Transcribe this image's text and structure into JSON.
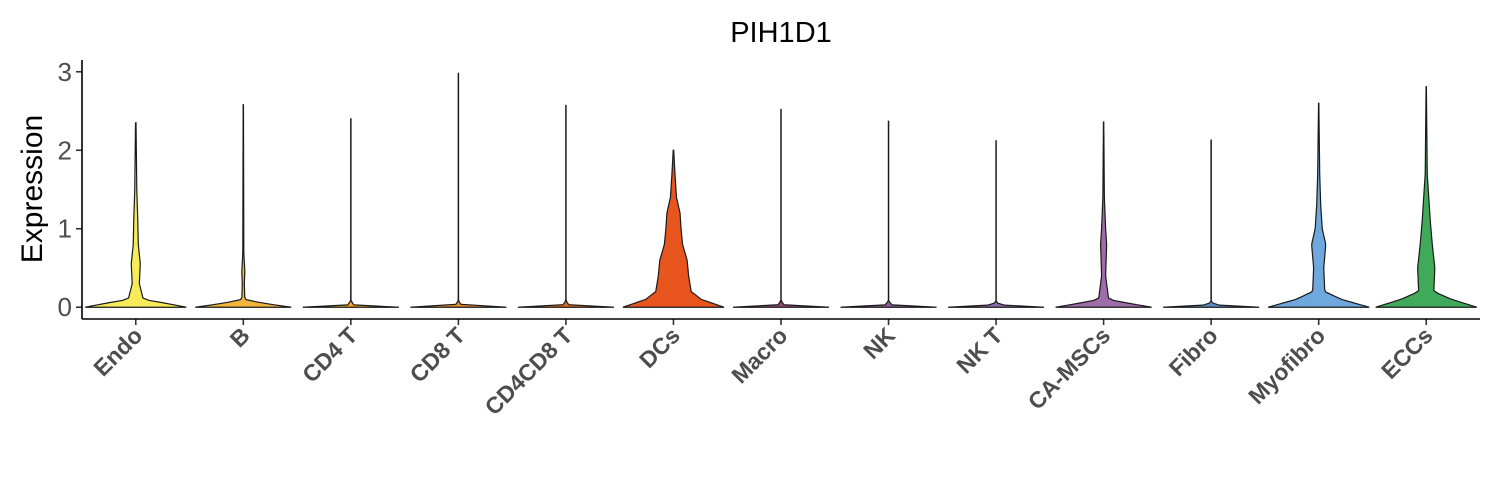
{
  "chart_data": {
    "type": "violin",
    "title": "PIH1D1",
    "xlabel": "",
    "ylabel": "Expression",
    "ylim": [
      -0.15,
      3.15
    ],
    "yticks": [
      0,
      1,
      2,
      3
    ],
    "grid": false,
    "legend": "none",
    "categories": [
      "Endo",
      "B",
      "CD4 T",
      "CD8 T",
      "CD4CD8 T",
      "DCs",
      "Macro",
      "NK",
      "NK T",
      "CA-MSCs",
      "Fibro",
      "Myofibro",
      "ECCs"
    ],
    "colors": [
      "#F8EB5A",
      "#F0B43C",
      "#F5A623",
      "#E58A2A",
      "#E06A1F",
      "#E8561E",
      "#9D4A7A",
      "#8E5B95",
      "#8A6AAA",
      "#9E6CA8",
      "#5E8EC8",
      "#6FA8DC",
      "#3FAA5A"
    ],
    "max_values": [
      2.35,
      2.58,
      2.4,
      2.98,
      2.57,
      2.0,
      2.52,
      2.37,
      2.12,
      2.36,
      2.13,
      2.6,
      2.81
    ],
    "density_profiles": [
      [
        [
          0,
          1.0
        ],
        [
          0.05,
          0.6
        ],
        [
          0.1,
          0.15
        ],
        [
          0.3,
          0.07
        ],
        [
          0.55,
          0.09
        ],
        [
          0.8,
          0.05
        ],
        [
          1.1,
          0.04
        ],
        [
          1.5,
          0.02
        ],
        [
          2.35,
          0.005
        ]
      ],
      [
        [
          0,
          0.95
        ],
        [
          0.05,
          0.4
        ],
        [
          0.1,
          0.03
        ],
        [
          0.3,
          0.02
        ],
        [
          0.45,
          0.03
        ],
        [
          0.7,
          0.01
        ],
        [
          2.58,
          0.003
        ]
      ],
      [
        [
          0,
          0.95
        ],
        [
          0.03,
          0.06
        ],
        [
          0.08,
          0.003
        ],
        [
          2.4,
          0.003
        ]
      ],
      [
        [
          0,
          0.95
        ],
        [
          0.03,
          0.06
        ],
        [
          0.08,
          0.003
        ],
        [
          2.98,
          0.003
        ]
      ],
      [
        [
          0,
          0.95
        ],
        [
          0.03,
          0.06
        ],
        [
          0.08,
          0.003
        ],
        [
          2.57,
          0.003
        ]
      ],
      [
        [
          0,
          1.0
        ],
        [
          0.1,
          0.55
        ],
        [
          0.2,
          0.35
        ],
        [
          0.4,
          0.3
        ],
        [
          0.6,
          0.27
        ],
        [
          0.8,
          0.18
        ],
        [
          1.0,
          0.15
        ],
        [
          1.2,
          0.13
        ],
        [
          1.4,
          0.06
        ],
        [
          1.7,
          0.03
        ],
        [
          2.0,
          0.005
        ]
      ],
      [
        [
          0,
          0.95
        ],
        [
          0.03,
          0.06
        ],
        [
          0.08,
          0.003
        ],
        [
          2.52,
          0.003
        ]
      ],
      [
        [
          0,
          0.95
        ],
        [
          0.03,
          0.06
        ],
        [
          0.08,
          0.003
        ],
        [
          2.37,
          0.003
        ]
      ],
      [
        [
          0,
          0.95
        ],
        [
          0.03,
          0.06
        ],
        [
          0.08,
          0.003
        ],
        [
          2.12,
          0.003
        ]
      ],
      [
        [
          0,
          0.95
        ],
        [
          0.05,
          0.5
        ],
        [
          0.1,
          0.1
        ],
        [
          0.4,
          0.04
        ],
        [
          0.8,
          0.06
        ],
        [
          1.0,
          0.04
        ],
        [
          1.4,
          0.015
        ],
        [
          2.36,
          0.003
        ]
      ],
      [
        [
          0,
          0.95
        ],
        [
          0.03,
          0.06
        ],
        [
          0.08,
          0.003
        ],
        [
          2.13,
          0.003
        ]
      ],
      [
        [
          0,
          1.0
        ],
        [
          0.1,
          0.45
        ],
        [
          0.2,
          0.12
        ],
        [
          0.5,
          0.1
        ],
        [
          0.8,
          0.14
        ],
        [
          1.0,
          0.07
        ],
        [
          1.3,
          0.04
        ],
        [
          1.7,
          0.02
        ],
        [
          2.6,
          0.003
        ]
      ],
      [
        [
          0,
          1.0
        ],
        [
          0.1,
          0.5
        ],
        [
          0.2,
          0.15
        ],
        [
          0.5,
          0.17
        ],
        [
          0.8,
          0.12
        ],
        [
          1.1,
          0.08
        ],
        [
          1.4,
          0.05
        ],
        [
          1.7,
          0.02
        ],
        [
          2.81,
          0.003
        ]
      ]
    ]
  }
}
